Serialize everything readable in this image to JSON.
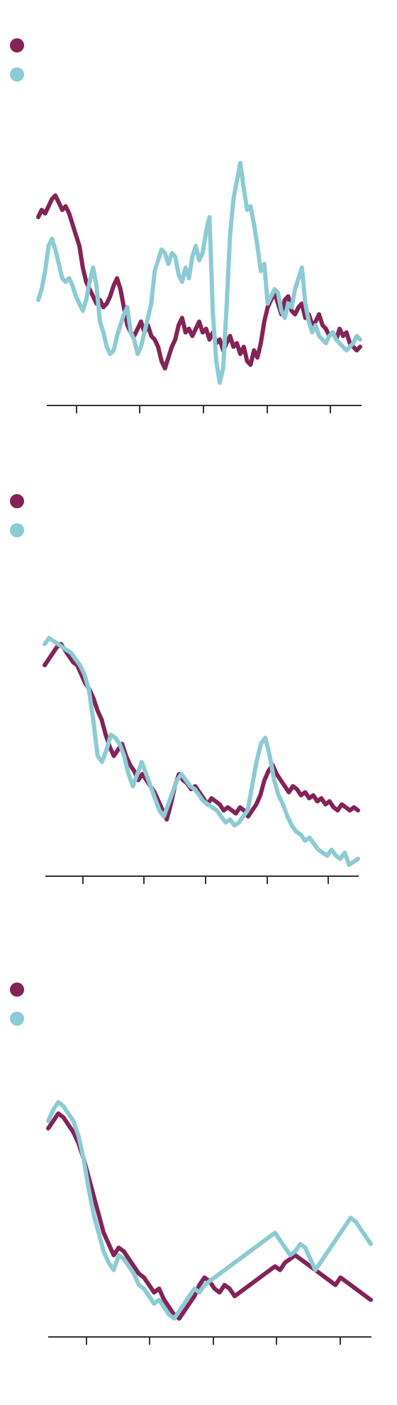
{
  "colors": {
    "series_a": "#832357",
    "series_b": "#8ccbd3",
    "axis": "#333333"
  },
  "chart_data": [
    {
      "type": "line",
      "grid": false,
      "legend": "top-left",
      "x_tick_count": 5,
      "series": [
        {
          "color": "#832357",
          "values": [
            60,
            62,
            61,
            63,
            65,
            66,
            64,
            62,
            63,
            61,
            58,
            55,
            52,
            46,
            42,
            40,
            38,
            36,
            37,
            35,
            36,
            38,
            41,
            43,
            40,
            35,
            30,
            28,
            27,
            29,
            31,
            28,
            30,
            27,
            26,
            24,
            20,
            18,
            21,
            24,
            26,
            30,
            32,
            28,
            29,
            27,
            29,
            31,
            28,
            29,
            26,
            28,
            25,
            26,
            23,
            25,
            27,
            24,
            25,
            22,
            24,
            20,
            19,
            23,
            21,
            25,
            31,
            35,
            37,
            39,
            36,
            33,
            37,
            38,
            34,
            33,
            35,
            36,
            32,
            33,
            30,
            31,
            33,
            30,
            29,
            27,
            28,
            26,
            29,
            27,
            28,
            25,
            24,
            23,
            24
          ]
        },
        {
          "color": "#8ccbd3",
          "values": [
            37,
            40,
            45,
            52,
            54,
            51,
            47,
            43,
            42,
            43,
            41,
            38,
            36,
            34,
            37,
            42,
            46,
            41,
            31,
            28,
            24,
            22,
            23,
            27,
            30,
            33,
            35,
            28,
            26,
            22,
            24,
            28,
            32,
            36,
            45,
            48,
            51,
            50,
            47,
            50,
            49,
            44,
            42,
            46,
            43,
            49,
            52,
            48,
            50,
            56,
            60,
            33,
            20,
            14,
            18,
            35,
            55,
            65,
            70,
            75,
            68,
            62,
            63,
            58,
            52,
            45,
            47,
            36,
            38,
            40,
            39,
            34,
            32,
            36,
            35,
            40,
            43,
            46,
            36,
            31,
            28,
            30,
            27,
            26,
            25,
            27,
            28,
            26,
            25,
            24,
            23,
            24,
            25,
            27,
            26
          ]
        }
      ]
    },
    {
      "type": "line",
      "grid": false,
      "legend": "top-left",
      "x_tick_count": 5,
      "series": [
        {
          "color": "#832357",
          "values": [
            88,
            90,
            92,
            94,
            95,
            93,
            91,
            89,
            88,
            85,
            82,
            80,
            77,
            73,
            70,
            65,
            61,
            58,
            60,
            62,
            58,
            55,
            53,
            50,
            52,
            50,
            48,
            46,
            43,
            40,
            37,
            42,
            48,
            52,
            50,
            49,
            47,
            48,
            46,
            44,
            42,
            44,
            43,
            42,
            40,
            41,
            40,
            39,
            41,
            40,
            38,
            40,
            42,
            45,
            50,
            53,
            55,
            52,
            50,
            48,
            46,
            48,
            47,
            45,
            46,
            44,
            45,
            43,
            44,
            42,
            43,
            41,
            40,
            42,
            41,
            40,
            41,
            40
          ]
        },
        {
          "color": "#8ccbd3",
          "values": [
            95,
            97,
            96,
            95,
            94,
            93,
            92,
            90,
            88,
            85,
            80,
            70,
            58,
            56,
            60,
            65,
            64,
            62,
            58,
            52,
            48,
            52,
            56,
            52,
            48,
            44,
            40,
            38,
            42,
            46,
            50,
            52,
            50,
            48,
            47,
            45,
            43,
            42,
            41,
            40,
            38,
            36,
            37,
            35,
            36,
            38,
            40,
            48,
            56,
            62,
            64,
            58,
            50,
            45,
            42,
            38,
            35,
            33,
            32,
            30,
            31,
            29,
            27,
            26,
            25,
            27,
            25,
            24,
            26,
            22,
            23,
            24
          ]
        }
      ]
    },
    {
      "type": "line",
      "grid": false,
      "legend": "top-left",
      "x_tick_count": 5,
      "series": [
        {
          "color": "#832357",
          "values": [
            78,
            80,
            82,
            81,
            79,
            77,
            74,
            70,
            65,
            60,
            55,
            50,
            47,
            44,
            46,
            45,
            43,
            41,
            39,
            38,
            36,
            34,
            35,
            32,
            30,
            28,
            27,
            29,
            31,
            33,
            36,
            38,
            37,
            35,
            34,
            36,
            35,
            33,
            34,
            35,
            36,
            37,
            38,
            39,
            40,
            41,
            40,
            42,
            43,
            44,
            43,
            42,
            41,
            40,
            39,
            38,
            37,
            36,
            38,
            37,
            36,
            35,
            34,
            33,
            32
          ]
        },
        {
          "color": "#8ccbd3",
          "values": [
            80,
            83,
            85,
            84,
            82,
            80,
            76,
            70,
            62,
            55,
            50,
            45,
            42,
            40,
            44,
            43,
            41,
            39,
            36,
            35,
            33,
            31,
            32,
            30,
            28,
            27,
            29,
            31,
            33,
            35,
            34,
            36,
            37,
            38,
            39,
            40,
            41,
            42,
            43,
            44,
            45,
            46,
            47,
            48,
            49,
            50,
            48,
            46,
            44,
            45,
            47,
            46,
            43,
            40,
            42,
            44,
            46,
            48,
            50,
            52,
            54,
            53,
            51,
            49,
            47
          ]
        }
      ]
    }
  ]
}
